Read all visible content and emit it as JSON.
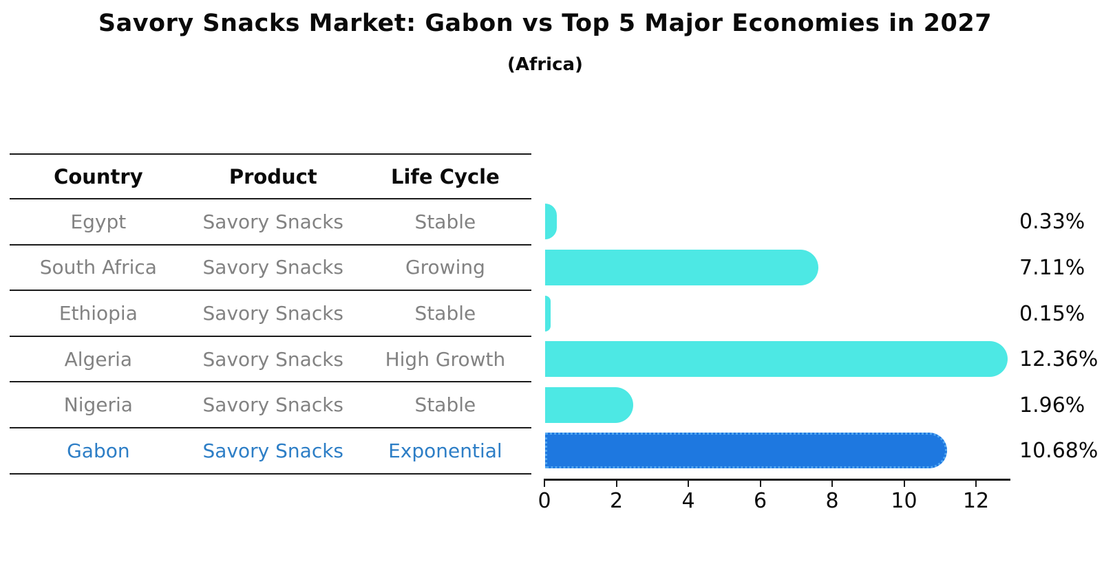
{
  "chart_data": {
    "type": "bar",
    "orientation": "horizontal",
    "title": "Savory Snacks Market: Gabon vs Top 5 Major Economies in 2027",
    "subtitle": "(Africa)",
    "xlabel": "",
    "ylabel": "",
    "xlim": [
      0,
      13
    ],
    "x_ticks": [
      0,
      2,
      4,
      6,
      8,
      10,
      12
    ],
    "grid": false,
    "legend": "none",
    "table_headers": [
      "Country",
      "Product",
      "Life Cycle"
    ],
    "categories": [
      "Egypt",
      "South Africa",
      "Ethiopia",
      "Algeria",
      "Nigeria",
      "Gabon"
    ],
    "values": [
      0.33,
      7.11,
      0.15,
      12.36,
      1.96,
      10.68
    ],
    "rows": [
      {
        "country": "Egypt",
        "product": "Savory Snacks",
        "life_cycle": "Stable",
        "value": 0.33,
        "value_label": "0.33%",
        "highlight": false
      },
      {
        "country": "South Africa",
        "product": "Savory Snacks",
        "life_cycle": "Growing",
        "value": 7.11,
        "value_label": "7.11%",
        "highlight": false
      },
      {
        "country": "Ethiopia",
        "product": "Savory Snacks",
        "life_cycle": "Stable",
        "value": 0.15,
        "value_label": "0.15%",
        "highlight": false
      },
      {
        "country": "Algeria",
        "product": "Savory Snacks",
        "life_cycle": "High Growth",
        "value": 12.36,
        "value_label": "12.36%",
        "highlight": false
      },
      {
        "country": "Nigeria",
        "product": "Savory Snacks",
        "life_cycle": "Stable",
        "value": 1.96,
        "value_label": "1.96%",
        "highlight": false
      },
      {
        "country": "Gabon",
        "product": "Savory Snacks",
        "life_cycle": "Exponential",
        "value": 10.68,
        "value_label": "10.68%",
        "highlight": true
      }
    ],
    "colors": {
      "bar": "#4de8e4",
      "highlight_bar": "#1e78e0",
      "highlight_bar_edge": "#54a8f2",
      "highlight_text": "#2d7ec6",
      "row_text": "#828282",
      "header_text": "#0a0a0a",
      "axis": "#1a1a1a",
      "background": "#ffffff"
    }
  }
}
